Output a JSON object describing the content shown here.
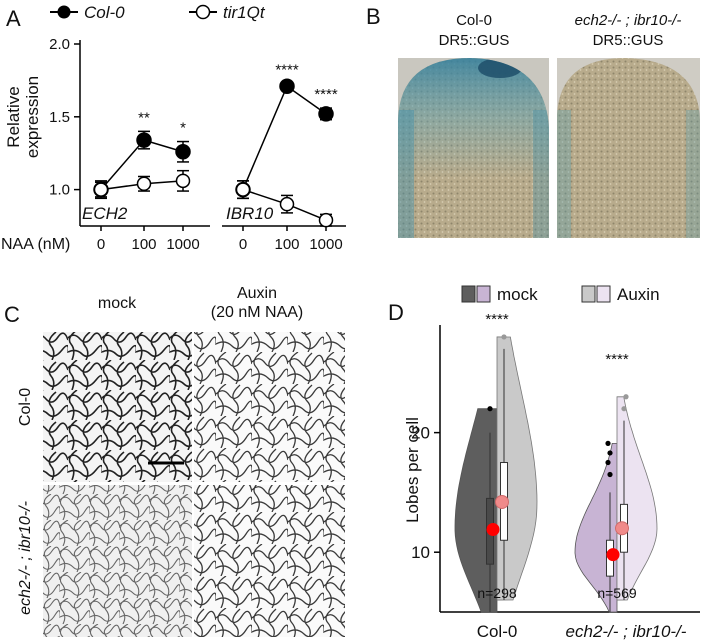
{
  "panels": {
    "A": {
      "letter": "A"
    },
    "B": {
      "letter": "B",
      "images": [
        {
          "label1": "Col-0",
          "label2": "DR5::GUS"
        },
        {
          "label1": "ech2-/- ; ibr10-/-",
          "label2": "DR5::GUS"
        }
      ]
    },
    "C": {
      "letter": "C",
      "col_labels": [
        "mock",
        "Auxin",
        "(20 nM NAA)"
      ],
      "row_labels": [
        "Col-0",
        "ech2-/- ; ibr10-/-"
      ]
    },
    "D": {
      "letter": "D"
    }
  },
  "chart_data": [
    {
      "id": "A",
      "type": "line",
      "ylabel_line1": "Relative",
      "ylabel_line2": "expression",
      "xlabel": "NAA (nM)",
      "ylim": [
        0.75,
        2.0
      ],
      "yticks": [
        "1.0",
        "1.5",
        "2.0"
      ],
      "categories": [
        "0",
        "100",
        "1000"
      ],
      "legend": [
        {
          "name": "Col-0",
          "marker": "filled"
        },
        {
          "name": "tir1Qt",
          "marker": "open"
        }
      ],
      "subplots": [
        {
          "gene": "ECH2",
          "series": [
            {
              "name": "Col-0",
              "values": [
                1.0,
                1.34,
                1.26
              ],
              "errors": [
                0.06,
                0.06,
                0.07
              ]
            },
            {
              "name": "tir1Qt",
              "values": [
                1.0,
                1.04,
                1.06
              ],
              "errors": [
                0.05,
                0.05,
                0.07
              ]
            }
          ],
          "significance": [
            "",
            "**",
            "*"
          ]
        },
        {
          "gene": "IBR10",
          "series": [
            {
              "name": "Col-0",
              "values": [
                1.0,
                1.71,
                1.52
              ],
              "errors": [
                0.06,
                0.02,
                0.04
              ]
            },
            {
              "name": "tir1Qt",
              "values": [
                1.0,
                0.9,
                0.79
              ],
              "errors": [
                0.06,
                0.06,
                0.04
              ]
            }
          ],
          "significance": [
            "",
            "****",
            "****"
          ]
        }
      ]
    },
    {
      "id": "D",
      "type": "violin",
      "ylabel": "Lobes per cell",
      "ylim": [
        5,
        29
      ],
      "yticks": [
        10,
        20
      ],
      "categories": [
        "Col-0",
        "ech2-/- ; ibr10-/-"
      ],
      "legend": [
        "mock",
        "Auxin"
      ],
      "groups": [
        {
          "name": "Col-0",
          "n_label": "n=298",
          "significance": "****",
          "mock": {
            "mean": 11.9,
            "median": 12,
            "q1": 9,
            "q3": 14.5,
            "whisker_low": 5,
            "whisker_high": 20,
            "outliers": [
              22
            ]
          },
          "auxin": {
            "mean": 14.2,
            "median": 14,
            "q1": 11,
            "q3": 17.5,
            "whisker_low": 6,
            "whisker_high": 27,
            "outliers": [
              28
            ]
          }
        },
        {
          "name": "ech2-/- ; ibr10-/-",
          "n_label": "n=569",
          "significance": "****",
          "mock": {
            "mean": 9.8,
            "median": 10,
            "q1": 8,
            "q3": 11,
            "whisker_low": 5,
            "whisker_high": 15,
            "outliers": [
              16.5,
              17.5,
              18.3,
              19.1
            ]
          },
          "auxin": {
            "mean": 12,
            "median": 12,
            "q1": 10,
            "q3": 14,
            "whisker_low": 6,
            "whisker_high": 21,
            "outliers": [
              22,
              23
            ]
          }
        }
      ]
    }
  ],
  "colors": {
    "mock_dark": "#5e5e5e",
    "mock_light": "#c8b4d4",
    "auxin_dark": "#c9c9c9",
    "auxin_light": "#ece3f1",
    "mean_mock": "#ff0000",
    "mean_auxin": "#f08a8a"
  }
}
